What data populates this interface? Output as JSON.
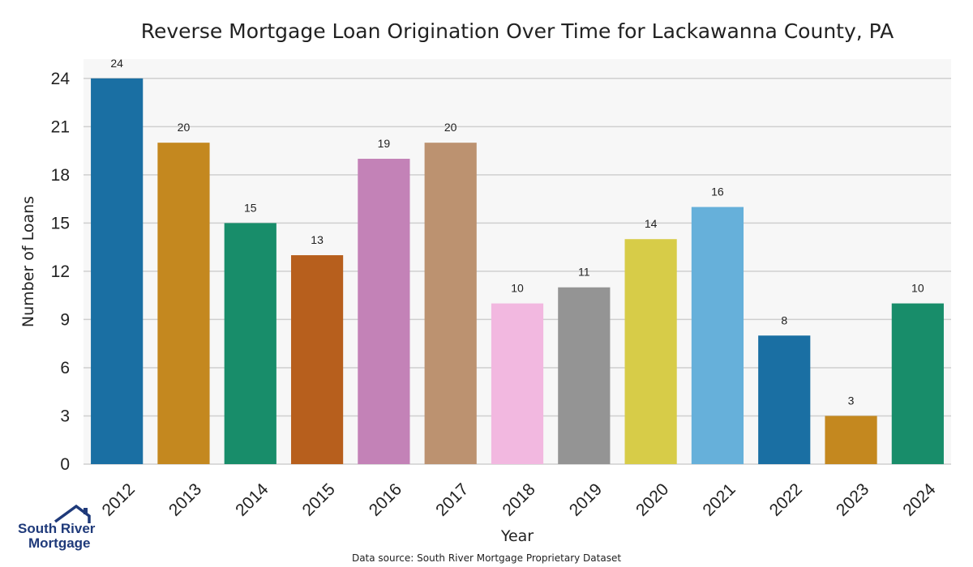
{
  "chart_data": {
    "type": "bar",
    "title": "Reverse Mortgage Loan Origination Over Time for Lackawanna County, PA",
    "xlabel": "Year",
    "ylabel": "Number of Loans",
    "categories": [
      "2012",
      "2013",
      "2014",
      "2015",
      "2016",
      "2017",
      "2018",
      "2019",
      "2020",
      "2021",
      "2022",
      "2023",
      "2024"
    ],
    "values": [
      24,
      20,
      15,
      13,
      19,
      20,
      10,
      11,
      14,
      16,
      8,
      3,
      10
    ],
    "bar_colors": [
      "#1a6fa3",
      "#c4881f",
      "#188d6a",
      "#b75f1d",
      "#c382b7",
      "#bc9270",
      "#f2b8e0",
      "#949494",
      "#d7cc48",
      "#66b0da",
      "#1a6fa3",
      "#c4881f",
      "#188d6a"
    ],
    "ylim": [
      0,
      25.2
    ],
    "yticks": [
      0,
      3,
      6,
      9,
      12,
      15,
      18,
      21,
      24
    ],
    "grid": true,
    "plot_background": "#f7f7f7",
    "grid_color": "#cfcfcf"
  },
  "footer": {
    "source": "Data source: South River Mortgage Proprietary Dataset"
  },
  "logo": {
    "line1": "South River",
    "line2": "Mortgage"
  }
}
